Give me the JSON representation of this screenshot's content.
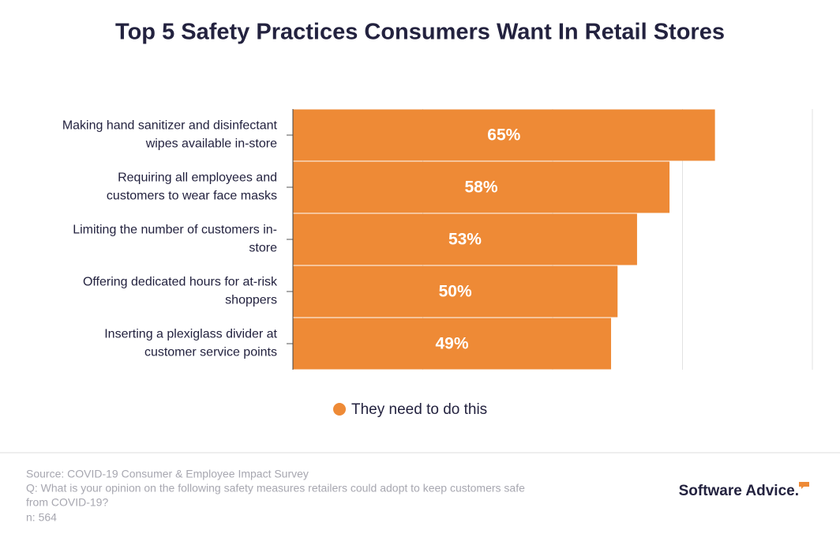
{
  "chart_data": {
    "type": "bar",
    "orientation": "horizontal",
    "title": "Top 5 Safety Practices Consumers Want In Retail Stores",
    "categories": [
      [
        "Making hand sanitizer and disinfectant",
        "wipes available in-store"
      ],
      [
        "Requiring all employees and",
        "customers to wear face masks"
      ],
      [
        "Limiting the number of customers in-",
        "store"
      ],
      [
        "Offering dedicated hours for at-risk",
        "shoppers"
      ],
      [
        "Inserting a plexiglass divider at",
        "customer service points"
      ]
    ],
    "series": [
      {
        "name": "They need to do this",
        "color": "#ee8a36",
        "values": [
          65,
          58,
          53,
          50,
          49
        ],
        "value_labels": [
          "65%",
          "58%",
          "53%",
          "50%",
          "49%"
        ]
      }
    ],
    "xlim": [
      0,
      80
    ],
    "grid_values": [
      20,
      40,
      60,
      80
    ],
    "grid": true
  },
  "footer": {
    "source": "Source: COVID-19 Consumer & Employee Impact Survey",
    "question": [
      "Q: What is your opinion on the following safety measures retailers could adopt to keep customers safe",
      "from COVID-19?"
    ],
    "n": "n: 564",
    "logo": "Software Advice."
  }
}
